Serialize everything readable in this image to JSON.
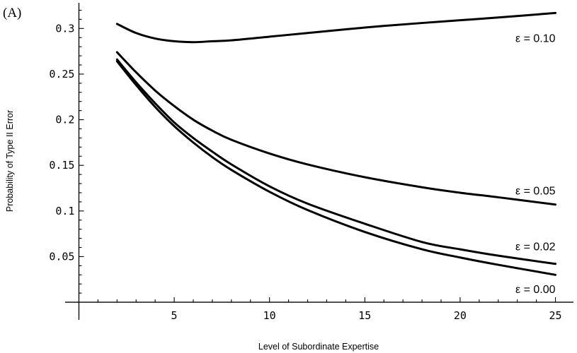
{
  "chart_data": {
    "type": "line",
    "panel_label": "(A)",
    "title": "",
    "xlabel": "Level of Subordinate Expertise",
    "ylabel": "Probability of Type II Error",
    "xlim": [
      -0.5,
      25.5
    ],
    "ylim": [
      -0.01,
      0.325
    ],
    "xticks": [
      5,
      10,
      15,
      20,
      25
    ],
    "xtick_labels": [
      "5",
      "10",
      "15",
      "20",
      "25"
    ],
    "yticks": [
      0.05,
      0.1,
      0.15,
      0.2,
      0.25,
      0.3
    ],
    "ytick_labels": [
      "0.05",
      "0.1",
      "0.15",
      "0.2",
      "0.25",
      "0.3"
    ],
    "grid": false,
    "legend": "none",
    "x": [
      2,
      3,
      4,
      5,
      6,
      7,
      8,
      10,
      12,
      15,
      18,
      20,
      22,
      25
    ],
    "series": [
      {
        "name": "ε = 0.10",
        "label_x": 25,
        "label_y": 0.285,
        "values": [
          0.305,
          0.295,
          0.289,
          0.286,
          0.285,
          0.286,
          0.287,
          0.291,
          0.295,
          0.301,
          0.306,
          0.309,
          0.312,
          0.317
        ]
      },
      {
        "name": "ε = 0.05",
        "label_x": 25,
        "label_y": 0.118,
        "values": [
          0.274,
          0.252,
          0.232,
          0.215,
          0.2,
          0.188,
          0.178,
          0.163,
          0.151,
          0.137,
          0.126,
          0.12,
          0.115,
          0.107
        ]
      },
      {
        "name": "ε = 0.02",
        "label_x": 25,
        "label_y": 0.057,
        "values": [
          0.266,
          0.241,
          0.218,
          0.197,
          0.18,
          0.165,
          0.151,
          0.127,
          0.108,
          0.086,
          0.066,
          0.058,
          0.051,
          0.042
        ]
      },
      {
        "name": "ε = 0.00",
        "label_x": 25,
        "label_y": 0.01,
        "values": [
          0.264,
          0.238,
          0.214,
          0.193,
          0.175,
          0.159,
          0.145,
          0.121,
          0.101,
          0.077,
          0.058,
          0.049,
          0.041,
          0.03
        ]
      }
    ]
  }
}
